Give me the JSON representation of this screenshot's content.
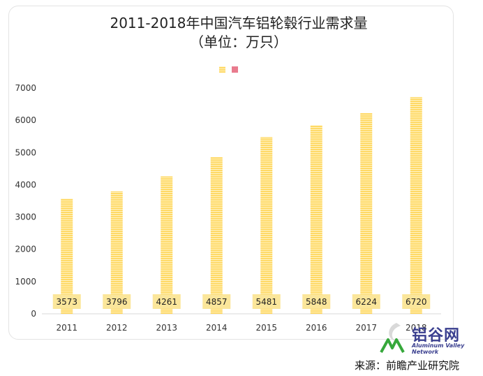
{
  "chart_data": {
    "type": "bar",
    "title_line1": "2011-2018年中国汽车铝轮毂行业需求量",
    "title_line2": "（单位：万只）",
    "categories": [
      "2011",
      "2012",
      "2013",
      "2014",
      "2015",
      "2016",
      "2017",
      "2018"
    ],
    "values": [
      3573,
      3796,
      4261,
      4857,
      5481,
      5848,
      6224,
      6720
    ],
    "yticks": [
      0,
      1000,
      2000,
      3000,
      4000,
      5000,
      6000,
      7000
    ],
    "ylim": [
      0,
      7000
    ],
    "legend_placement": "top-center",
    "grid": false,
    "colors": {
      "bar": "#ffd966",
      "bar_stripe": "#fff4c7",
      "label_box": "#fbe69a",
      "legend_2": "#e97b8e"
    }
  },
  "watermark": {
    "cn": "铝谷网",
    "en_lines": [
      "Aluminum Valley",
      "Network"
    ],
    "colors": {
      "text": "#3a3f8f",
      "mark": "#36a83b"
    }
  },
  "source": "来源：前瞻产业研究院"
}
